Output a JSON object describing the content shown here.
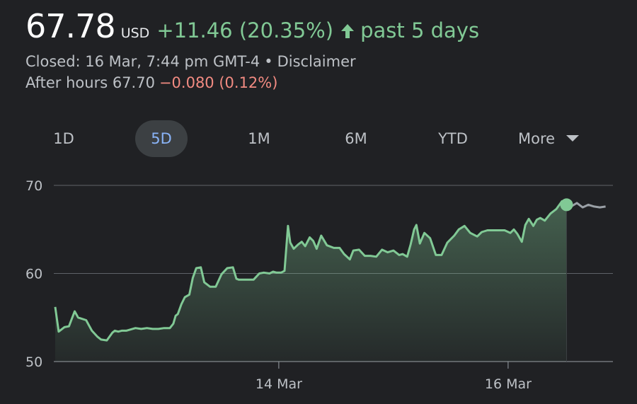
{
  "header": {
    "price": "67.78",
    "currency": "USD",
    "change": "+11.46 (20.35%)",
    "period": "past 5 days",
    "closed_text": "Closed: 16 Mar, 7:44 pm GMT-4",
    "separator": "•",
    "disclaimer": "Disclaimer",
    "after_hours_label": "After hours 67.70",
    "after_hours_change": "−0.080 (0.12%)"
  },
  "tabs": [
    {
      "label": "1D",
      "active": false
    },
    {
      "label": "5D",
      "active": true
    },
    {
      "label": "1M",
      "active": false
    },
    {
      "label": "6M",
      "active": false
    },
    {
      "label": "YTD",
      "active": false
    }
  ],
  "more_label": "More",
  "colors": {
    "positive": "#81c995",
    "negative": "#f28b82",
    "active_tab": "#8ab4f8",
    "after_hours_line": "#9aa0a6"
  },
  "chart_data": {
    "type": "area",
    "ylim": [
      50,
      70
    ],
    "yticks": [
      70,
      60,
      50
    ],
    "grid": true,
    "x_tick_labels": [
      {
        "label": "14 Mar",
        "x": 1.95
      },
      {
        "label": "16 Mar",
        "x": 3.95
      }
    ],
    "xlim": [
      0,
      5
    ],
    "series": [
      {
        "x": [
          0.0,
          0.03,
          0.08,
          0.12,
          0.17,
          0.2,
          0.27,
          0.32,
          0.37,
          0.4,
          0.45,
          0.5,
          0.52,
          0.55,
          0.58,
          0.62,
          0.7,
          0.75,
          0.8,
          0.85,
          0.9,
          0.95,
          1.0,
          1.03,
          1.05,
          1.07,
          1.1,
          1.13,
          1.17,
          1.2,
          1.23,
          1.27,
          1.3,
          1.35,
          1.4,
          1.45,
          1.5,
          1.55,
          1.58,
          1.6,
          1.63,
          1.68,
          1.73,
          1.78,
          1.82,
          1.87,
          1.9,
          1.93,
          1.97,
          2.0,
          2.03,
          2.05,
          2.08,
          2.12,
          2.15,
          2.18,
          2.22,
          2.25,
          2.28,
          2.32,
          2.37,
          2.43,
          2.48,
          2.52,
          2.57,
          2.6,
          2.65,
          2.7,
          2.75,
          2.8,
          2.85,
          2.9,
          2.95,
          3.0,
          3.03,
          3.07,
          3.1,
          3.13,
          3.15,
          3.18,
          3.22,
          3.27,
          3.32,
          3.37,
          3.42,
          3.48,
          3.52,
          3.57,
          3.62,
          3.68,
          3.72,
          3.77,
          3.82,
          3.87,
          3.92,
          3.97,
          4.0,
          4.03,
          4.07,
          4.1,
          4.13,
          4.17,
          4.2,
          4.23,
          4.27,
          4.32,
          4.37,
          4.42,
          4.46
        ],
        "values": [
          56.2,
          53.4,
          53.9,
          54.0,
          55.7,
          55.0,
          54.7,
          53.5,
          52.8,
          52.5,
          52.4,
          53.3,
          53.5,
          53.4,
          53.5,
          53.5,
          53.8,
          53.7,
          53.8,
          53.7,
          53.7,
          53.8,
          53.8,
          54.3,
          55.2,
          55.4,
          56.5,
          57.3,
          57.6,
          59.5,
          60.6,
          60.7,
          59.0,
          58.5,
          58.5,
          59.9,
          60.6,
          60.7,
          59.4,
          59.3,
          59.3,
          59.3,
          59.3,
          60.0,
          60.1,
          60.0,
          60.2,
          60.1,
          60.1,
          60.3,
          65.4,
          63.5,
          62.8,
          63.3,
          63.6,
          63.1,
          64.1,
          63.7,
          62.8,
          64.3,
          63.2,
          62.9,
          62.9,
          62.2,
          61.6,
          62.6,
          62.7,
          62.0,
          62.0,
          61.9,
          62.7,
          62.4,
          62.6,
          62.1,
          62.2,
          61.9,
          63.3,
          65.0,
          65.5,
          63.4,
          64.6,
          64.0,
          62.1,
          62.1,
          63.5,
          64.3,
          65.0,
          65.4,
          64.6,
          64.2,
          64.7,
          64.9,
          64.9,
          64.9,
          64.9,
          64.6,
          65.0,
          64.5,
          63.6,
          65.5,
          66.2,
          65.4,
          66.1,
          66.3,
          66.0,
          66.8,
          67.3,
          68.2,
          67.8
        ]
      },
      {
        "x": [
          4.46,
          4.5,
          4.55,
          4.6,
          4.65,
          4.7,
          4.75,
          4.8
        ],
        "values": [
          67.8,
          67.6,
          68.0,
          67.5,
          67.8,
          67.6,
          67.5,
          67.6
        ]
      }
    ]
  }
}
